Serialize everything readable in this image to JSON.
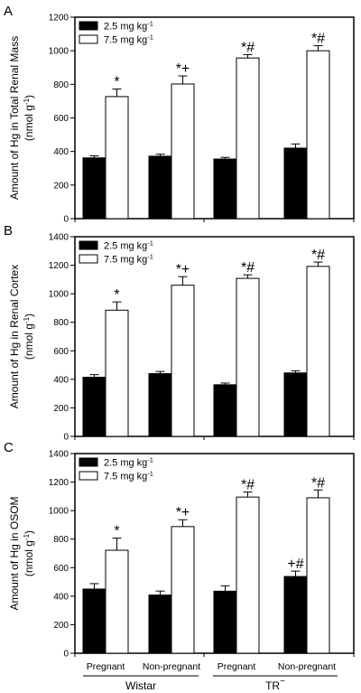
{
  "chart_data": [
    {
      "type": "bar",
      "panel_label": "A",
      "ylabel_line1": "Amount of Hg in Total Renal Mass",
      "ylabel_line2_main": "(nmol g",
      "ylabel_line2_sup": "-1",
      "ylabel_line2_end": ")",
      "ylim": [
        0,
        1200
      ],
      "yticks": [
        0,
        200,
        400,
        600,
        800,
        1000,
        1200
      ],
      "legend": [
        "2.5 mg kg",
        "7.5 mg kg"
      ],
      "legend_sup": "-1",
      "series": [
        {
          "values": [
            362,
            372,
            355,
            420
          ],
          "errors": [
            12,
            12,
            10,
            25
          ],
          "annotations": [
            "",
            "",
            "",
            ""
          ]
        },
        {
          "values": [
            727,
            802,
            957,
            1000
          ],
          "errors": [
            45,
            48,
            20,
            30
          ],
          "annotations": [
            "*",
            "*+",
            "*#",
            "*#"
          ]
        }
      ]
    },
    {
      "type": "bar",
      "panel_label": "B",
      "ylabel_line1": "Amount of Hg in Renal Cortex",
      "ylabel_line2_main": "(nmol g",
      "ylabel_line2_sup": "-1",
      "ylabel_line2_end": ")",
      "ylim": [
        0,
        1400
      ],
      "yticks": [
        0,
        200,
        400,
        600,
        800,
        1000,
        1200,
        1400
      ],
      "legend": [
        "2.5 mg kg",
        "7.5 mg kg"
      ],
      "legend_sup": "-1",
      "series": [
        {
          "values": [
            415,
            440,
            362,
            445
          ],
          "errors": [
            18,
            15,
            12,
            15
          ],
          "annotations": [
            "",
            "",
            "",
            ""
          ]
        },
        {
          "values": [
            885,
            1060,
            1108,
            1192
          ],
          "errors": [
            58,
            60,
            25,
            30
          ],
          "annotations": [
            "*",
            "*+",
            "*#",
            "*#"
          ]
        }
      ]
    },
    {
      "type": "bar",
      "panel_label": "C",
      "ylabel_line1": "Amount of Hg in OSOM",
      "ylabel_line2_main": "(nmol g",
      "ylabel_line2_sup": "-1",
      "ylabel_line2_end": ")",
      "ylim": [
        0,
        1400
      ],
      "yticks": [
        0,
        200,
        400,
        600,
        800,
        1000,
        1200,
        1400
      ],
      "legend": [
        "2.5 mg kg",
        "7.5 mg kg"
      ],
      "legend_sup": "-1",
      "series": [
        {
          "values": [
            450,
            408,
            435,
            538
          ],
          "errors": [
            38,
            28,
            38,
            38
          ],
          "annotations": [
            "",
            "",
            "",
            "+#"
          ]
        },
        {
          "values": [
            722,
            888,
            1095,
            1090
          ],
          "errors": [
            85,
            48,
            35,
            55
          ],
          "annotations": [
            "*",
            "*+",
            "*#",
            "*#"
          ]
        }
      ]
    }
  ],
  "categories": [
    "Pregnant",
    "Non-pregnant",
    "Pregnant",
    "Non-pregnant"
  ],
  "groups": [
    {
      "label": "Wistar"
    },
    {
      "label": "TR",
      "sup": "−"
    }
  ],
  "colors": {
    "series0": "#000000",
    "series1": "#ffffff",
    "stroke": "#000000"
  }
}
